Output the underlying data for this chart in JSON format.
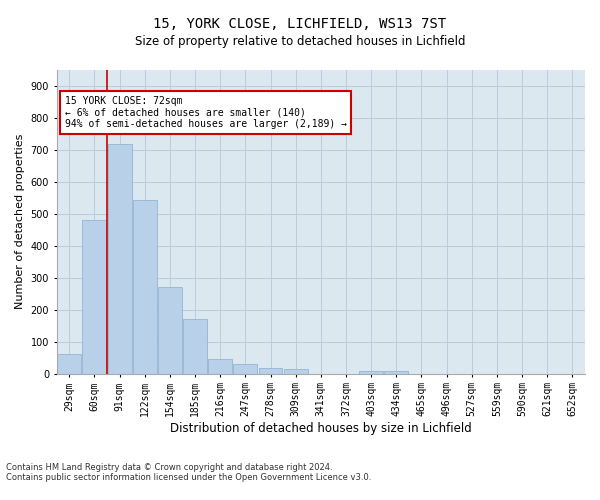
{
  "title_line1": "15, YORK CLOSE, LICHFIELD, WS13 7ST",
  "title_line2": "Size of property relative to detached houses in Lichfield",
  "xlabel": "Distribution of detached houses by size in Lichfield",
  "ylabel": "Number of detached properties",
  "annotation_line1": "15 YORK CLOSE: 72sqm",
  "annotation_line2": "← 6% of detached houses are smaller (140)",
  "annotation_line3": "94% of semi-detached houses are larger (2,189) →",
  "footnote1": "Contains HM Land Registry data © Crown copyright and database right 2024.",
  "footnote2": "Contains public sector information licensed under the Open Government Licence v3.0.",
  "categories": [
    "29sqm",
    "60sqm",
    "91sqm",
    "122sqm",
    "154sqm",
    "185sqm",
    "216sqm",
    "247sqm",
    "278sqm",
    "309sqm",
    "341sqm",
    "372sqm",
    "403sqm",
    "434sqm",
    "465sqm",
    "496sqm",
    "527sqm",
    "559sqm",
    "590sqm",
    "621sqm",
    "652sqm"
  ],
  "values": [
    62,
    480,
    718,
    543,
    271,
    170,
    46,
    31,
    17,
    13,
    0,
    0,
    8,
    8,
    0,
    0,
    0,
    0,
    0,
    0,
    0
  ],
  "bar_color": "#b8d0e8",
  "bar_edge_color": "#88aed0",
  "red_line_x": 1.5,
  "red_line_color": "#cc0000",
  "annotation_box_color": "#cc0000",
  "background_color": "#ffffff",
  "axes_bg_color": "#dce8f0",
  "grid_color": "#b8cce0",
  "ylim": [
    0,
    950
  ],
  "yticks": [
    0,
    100,
    200,
    300,
    400,
    500,
    600,
    700,
    800,
    900
  ],
  "title1_fontsize": 10,
  "title2_fontsize": 8.5,
  "ylabel_fontsize": 8,
  "xlabel_fontsize": 8.5,
  "tick_fontsize": 7,
  "annotation_fontsize": 7,
  "footnote_fontsize": 6
}
